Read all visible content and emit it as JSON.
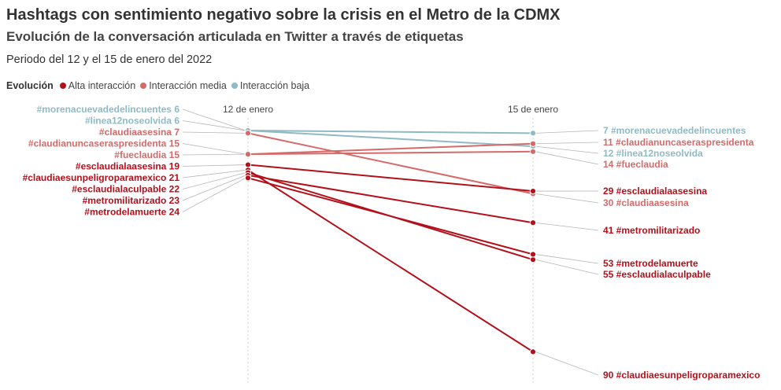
{
  "header": {
    "title": "Hashtags con sentimiento negativo sobre la crisis en el Metro de la CDMX",
    "subtitle": "Evolución de la conversación articulada en Twitter a través de etiquetas",
    "period": "Periodo del 12 y el 15 de enero del 2022"
  },
  "legend": {
    "title": "Evolución",
    "items": [
      {
        "label": "Alta interacción",
        "color": "#b2101a"
      },
      {
        "label": "Interacción media",
        "color": "#d46a6a"
      },
      {
        "label": "Interacción baja",
        "color": "#8fbac4"
      }
    ]
  },
  "chart_data": {
    "type": "slope",
    "categories": [
      "12 de enero",
      "15 de enero"
    ],
    "series": [
      {
        "name": "#morenacuevadedelincuentes",
        "values": [
          6,
          7
        ],
        "group": "Interacción baja",
        "color": "#8fbac4"
      },
      {
        "name": "#linea12noseolvida",
        "values": [
          6,
          12
        ],
        "group": "Interacción baja",
        "color": "#8fbac4"
      },
      {
        "name": "#claudiaasesina",
        "values": [
          7,
          30
        ],
        "group": "Interacción media",
        "color": "#d46a6a"
      },
      {
        "name": "#claudianuncaseraspresidenta",
        "values": [
          15,
          11
        ],
        "group": "Interacción media",
        "color": "#d46a6a"
      },
      {
        "name": "#fueclaudia",
        "values": [
          15,
          14
        ],
        "group": "Interacción media",
        "color": "#d46a6a"
      },
      {
        "name": "#esclaudialaasesina",
        "values": [
          19,
          29
        ],
        "group": "Alta interacción",
        "color": "#b2101a"
      },
      {
        "name": "#claudiaesunpeligroparamexico",
        "values": [
          21,
          90
        ],
        "group": "Alta interacción",
        "color": "#b2101a"
      },
      {
        "name": "#esclaudialaculpable",
        "values": [
          22,
          55
        ],
        "group": "Alta interacción",
        "color": "#b2101a"
      },
      {
        "name": "#metromilitarizado",
        "values": [
          23,
          41
        ],
        "group": "Alta interacción",
        "color": "#b2101a"
      },
      {
        "name": "#metrodelamuerte",
        "values": [
          24,
          53
        ],
        "group": "Alta interacción",
        "color": "#b2101a"
      }
    ]
  }
}
